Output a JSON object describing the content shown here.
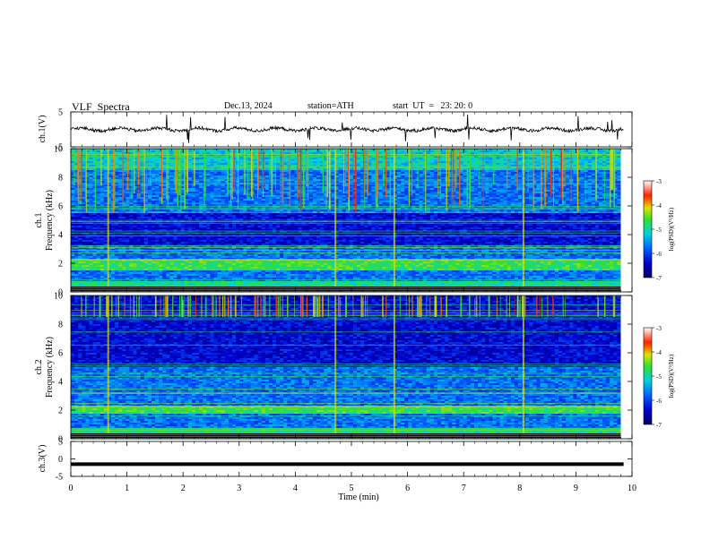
{
  "header": {
    "title": "VLF  Spectra",
    "date": "Dec.13, 2024",
    "station": "station=ATH",
    "start_ut": "start  UT  =   23: 20: 0"
  },
  "chart_data": [
    {
      "type": "line",
      "panel": "ch1-waveform",
      "ylabel": "ch.1(V)",
      "ylim": [
        -5,
        5
      ],
      "yticks": [
        "5",
        "-5"
      ],
      "xlim": [
        0,
        10
      ]
    },
    {
      "type": "heatmap",
      "panel": "ch1-spectrogram",
      "ylabel": "ch.1\nFrequency  (kHz)",
      "ylabel_top": "ch.1",
      "ylabel_bottom": "Frequency  (kHz)",
      "ylim": [
        0,
        10
      ],
      "yticks": [
        "0",
        "2",
        "4",
        "6",
        "8",
        "10"
      ],
      "xlim": [
        0,
        9.8
      ],
      "colorbar": {
        "label": "log(PSD)(V²/Hz)",
        "range": [
          -7,
          -3
        ],
        "ticks": [
          "-3",
          "-4",
          "-5",
          "-6",
          "-7"
        ]
      },
      "features": {
        "dark_band_khz": [
          3.2,
          5.5
        ],
        "bright_band_khz": [
          1.5,
          2.3
        ],
        "quiet_band_khz": [
          0,
          0.8
        ]
      }
    },
    {
      "type": "heatmap",
      "panel": "ch2-spectrogram",
      "ylabel": "ch.2\nFrequency  (kHz)",
      "ylabel_top": "ch.2",
      "ylabel_bottom": "Frequency  (kHz)",
      "ylim": [
        0,
        10
      ],
      "yticks": [
        "0",
        "2",
        "4",
        "6",
        "8",
        "10"
      ],
      "xlim": [
        0,
        9.8
      ],
      "colorbar": {
        "label": "log(PSD)(V²/Hz)",
        "range": [
          -7,
          -3
        ],
        "ticks": [
          "-3",
          "-4",
          "-5",
          "-6",
          "-7"
        ]
      },
      "features": {
        "dark_band_khz": [
          5.0,
          10.0
        ],
        "bright_band_khz": [
          1.8,
          2.3
        ],
        "quiet_band_khz": [
          0,
          0.8
        ]
      }
    },
    {
      "type": "line",
      "panel": "ch3-waveform",
      "ylabel": "ch.3(V)",
      "ylim": [
        -5,
        5
      ],
      "yticks": [
        "5",
        "0",
        "-5"
      ],
      "xlim": [
        0,
        10
      ],
      "level_v": -1.5
    }
  ],
  "xaxis": {
    "label": "Time  (min)",
    "ticks": [
      "0",
      "1",
      "2",
      "3",
      "4",
      "5",
      "6",
      "7",
      "8",
      "9",
      "10"
    ],
    "range": [
      0,
      10
    ]
  }
}
